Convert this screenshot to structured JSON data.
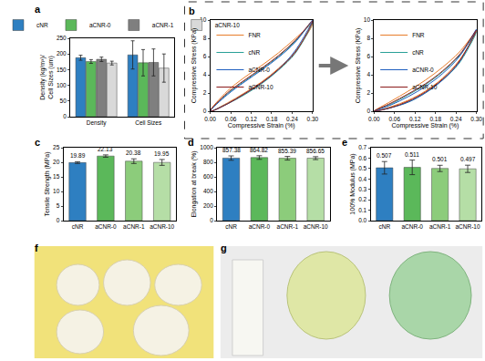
{
  "chart_data": [
    {
      "panel_label": "a",
      "type": "bar",
      "categories": [
        "Density",
        "Cell Sizes"
      ],
      "ylabel": [
        "Density (kg/m³)/",
        "Cell Sizes (um)"
      ],
      "series": [
        {
          "name": "cNR",
          "color": "#2e7fc1",
          "values": [
            188,
            197
          ],
          "errors": [
            8,
            45
          ]
        },
        {
          "name": "aCNR-0",
          "color": "#5bb85a",
          "values": [
            176,
            172
          ],
          "errors": [
            6,
            42
          ]
        },
        {
          "name": "aCNR-1",
          "color": "#7f7f7f",
          "values": [
            183,
            173
          ],
          "errors": [
            7,
            43
          ]
        },
        {
          "name": "aCNR-10",
          "color": "#d9d9d9",
          "values": [
            171,
            155
          ],
          "errors": [
            6,
            45
          ]
        }
      ],
      "ylim": [
        0,
        250
      ],
      "yticks": [
        0,
        50,
        100,
        150,
        200,
        250
      ],
      "grid": false,
      "legend": "top"
    },
    {
      "panel_label": "b",
      "type": "line",
      "xlabel": "Compressive Strain (%)",
      "ylabel": "Compressive Stress (KPa)",
      "x": [
        0,
        0.05,
        0.1,
        0.15,
        0.2,
        0.25,
        0.3,
        0.25,
        0.2,
        0.15,
        0.1,
        0.05,
        0
      ],
      "series": [
        {
          "name": "FNR",
          "color": "#e87d2b",
          "values": [
            0,
            2.2,
            3.7,
            5.0,
            6.4,
            8.0,
            9.6,
            6.6,
            4.7,
            3.2,
            2.0,
            0.9,
            0
          ]
        },
        {
          "name": "cNR",
          "color": "#2aa198",
          "values": [
            0,
            1.9,
            3.3,
            4.6,
            6.0,
            7.7,
            9.8,
            6.4,
            4.5,
            3.0,
            1.8,
            0.8,
            0
          ]
        },
        {
          "name": "aCNR-0",
          "color": "#1f5fbf",
          "values": [
            0,
            1.8,
            3.2,
            4.5,
            5.9,
            7.6,
            10.0,
            6.7,
            4.6,
            3.1,
            1.9,
            0.8,
            0
          ]
        },
        {
          "name": "aCNR-10",
          "color": "#8b1a1a",
          "values": [
            0,
            2.0,
            3.4,
            4.7,
            6.1,
            7.8,
            9.9,
            6.5,
            4.6,
            3.1,
            1.9,
            0.8,
            0
          ]
        }
      ],
      "xlim": [
        0,
        0.3
      ],
      "xticks": [
        {
          "value": 0,
          "label": "0.00"
        },
        0.06,
        0.12,
        0.18,
        0.24,
        {
          "value": 0.3,
          "label": "0.30"
        }
      ],
      "ylim": [
        0,
        10
      ],
      "yticks": [
        0,
        2,
        4,
        6,
        8,
        10
      ],
      "grid": false,
      "legend": "top left"
    },
    {
      "type": "line",
      "xlabel": "Compressive Strain (%)",
      "ylabel": "Compressive Stress (KPa)",
      "x": [
        0,
        0.05,
        0.1,
        0.15,
        0.2,
        0.25,
        0.3,
        0.25,
        0.2,
        0.15,
        0.1,
        0.05,
        0
      ],
      "series": [
        {
          "name": "FNR",
          "color": "#e87d2b",
          "values": [
            0,
            1.1,
            2.2,
            3.4,
            4.8,
            6.5,
            8.8,
            5.6,
            3.6,
            2.2,
            1.2,
            0.5,
            0
          ]
        },
        {
          "name": "cNR",
          "color": "#2aa198",
          "values": [
            0,
            0.8,
            1.8,
            2.9,
            4.3,
            6.1,
            8.7,
            5.3,
            3.4,
            2.0,
            1.0,
            0.4,
            0
          ]
        },
        {
          "name": "aCNR-0",
          "color": "#1f5fbf",
          "values": [
            0,
            0.7,
            1.6,
            2.7,
            4.1,
            6.0,
            9.0,
            5.4,
            3.4,
            2.0,
            1.0,
            0.4,
            0
          ]
        },
        {
          "name": "aCNR-10",
          "color": "#8b1a1a",
          "values": [
            0,
            0.9,
            1.9,
            3.0,
            4.4,
            6.2,
            8.9,
            5.5,
            3.5,
            2.1,
            1.1,
            0.4,
            0
          ]
        }
      ],
      "xlim": [
        0,
        0.3
      ],
      "xticks": [
        {
          "value": 0,
          "label": "0.00"
        },
        0.06,
        0.12,
        0.18,
        0.24,
        {
          "value": 0.3,
          "label": "0.30"
        }
      ],
      "ylim": [
        0,
        10
      ],
      "yticks": [
        0,
        2,
        4,
        6,
        8,
        10
      ],
      "grid": false,
      "legend": "top left"
    },
    {
      "panel_label": "c",
      "type": "bar",
      "ylabel": "Tensile Strength (MPa)",
      "categories": [
        "cNR",
        "aCNR-0",
        "aCNR-1",
        "aCNR-10"
      ],
      "values": [
        19.89,
        22.13,
        20.38,
        19.95
      ],
      "errors": [
        0.3,
        0.4,
        0.8,
        1.0
      ],
      "colors": [
        "#2e7fc1",
        "#5bb85a",
        "#8ccc7b",
        "#b5dea6"
      ],
      "ylim": [
        0,
        25
      ],
      "yticks": [
        0,
        5,
        10,
        15,
        20,
        25
      ],
      "grid": false,
      "data_labels": true
    },
    {
      "panel_label": "d",
      "type": "bar",
      "ylabel": "Elongation at break (%)",
      "categories": [
        "cNR",
        "aCNR-0",
        "aCNR-1",
        "aCNR-10"
      ],
      "values": [
        857.38,
        864.82,
        855.39,
        856.65
      ],
      "errors": [
        30,
        25,
        25,
        20
      ],
      "colors": [
        "#2e7fc1",
        "#5bb85a",
        "#8ccc7b",
        "#b5dea6"
      ],
      "ylim": [
        0,
        1000
      ],
      "yticks": [
        0,
        200,
        400,
        600,
        800,
        1000
      ],
      "grid": false,
      "data_labels": true
    },
    {
      "panel_label": "e",
      "type": "bar",
      "ylabel": "100% Modulus (MPa)",
      "categories": [
        "cNR",
        "aCNR-0",
        "aCNR-1",
        "aCNR-10"
      ],
      "values": [
        0.507,
        0.511,
        0.501,
        0.497
      ],
      "errors": [
        0.06,
        0.07,
        0.03,
        0.035
      ],
      "colors": [
        "#2e7fc1",
        "#5bb85a",
        "#8ccc7b",
        "#b5dea6"
      ],
      "ylim": [
        0,
        0.7
      ],
      "yticks": [
        {
          "value": 0,
          "label": "0.0"
        },
        0.1,
        0.2,
        0.3,
        0.4,
        0.5,
        0.6,
        0.7
      ],
      "grid": false,
      "data_labels": true
    },
    {
      "panel_label": "f",
      "type": "photo"
    },
    {
      "panel_label": "g",
      "type": "photo"
    }
  ]
}
